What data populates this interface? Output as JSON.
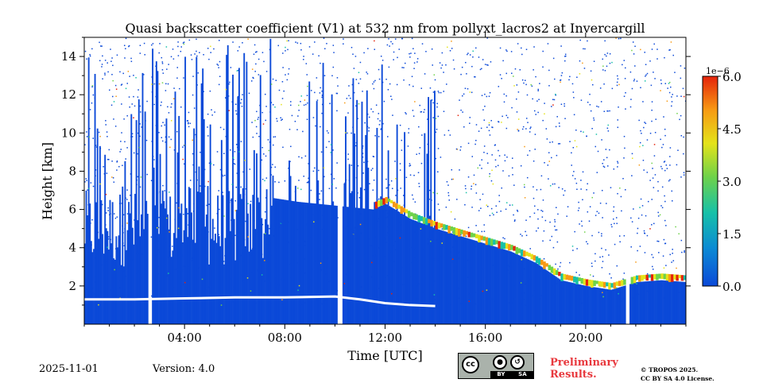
{
  "chart_data": {
    "type": "heatmap",
    "title": "Quasi backscatter coefficient (V1) at 532 nm from pollyxt_lacros2 at Invercargill",
    "xlabel": "Time [UTC]",
    "ylabel": "Height [km]",
    "xlim": [
      0,
      24
    ],
    "ylim": [
      0,
      15
    ],
    "x_ticks": [
      4,
      8,
      12,
      16,
      20
    ],
    "x_tick_labels": [
      "04:00",
      "08:00",
      "12:00",
      "16:00",
      "20:00"
    ],
    "y_ticks": [
      2,
      4,
      6,
      8,
      10,
      12,
      14
    ],
    "y_tick_labels": [
      "2",
      "4",
      "6",
      "8",
      "10",
      "12",
      "14"
    ],
    "colorbar": {
      "min": 0.0,
      "max": 6.0,
      "ticks": [
        0.0,
        1.5,
        3.0,
        4.5,
        6.0
      ],
      "tick_labels": [
        "0.0",
        "1.5",
        "3.0",
        "4.5",
        "6.0"
      ],
      "scale_label": "1e−6",
      "colormap": [
        "#0b49d8",
        "#0c8ad4",
        "#17c1a8",
        "#6ed24a",
        "#e4e31a",
        "#f79a14",
        "#e5230b"
      ]
    },
    "boundary_layer_top_km": {
      "x": [
        0,
        2,
        4,
        6,
        8,
        10,
        11,
        12,
        13,
        14
      ],
      "y": [
        1.3,
        1.3,
        1.35,
        1.4,
        1.4,
        1.45,
        1.3,
        1.1,
        1.0,
        0.95
      ]
    },
    "cloud_base_km": {
      "x": [
        7.5,
        8.5,
        10,
        11.5,
        12,
        13,
        14,
        15,
        16,
        17,
        18,
        19,
        20,
        21,
        22,
        23,
        24
      ],
      "y": [
        6.6,
        6.4,
        6.2,
        6.0,
        6.3,
        5.5,
        5.0,
        4.6,
        4.2,
        3.8,
        3.2,
        2.3,
        2.0,
        1.8,
        2.2,
        2.3,
        2.2
      ]
    },
    "no_data_gaps_utc": [
      [
        2.5,
        2.65
      ],
      [
        10.1,
        10.3
      ],
      [
        21.6,
        21.75
      ]
    ]
  },
  "footer": {
    "date": "2025-11-01",
    "version": "Version: 4.0",
    "preliminary": [
      "Preliminary",
      "Results."
    ],
    "copyright": [
      "© TROPOS 2025.",
      "CC BY SA 4.0 License."
    ],
    "license_badge": {
      "by": "BY",
      "sa": "SA",
      "cc": "cc"
    }
  }
}
